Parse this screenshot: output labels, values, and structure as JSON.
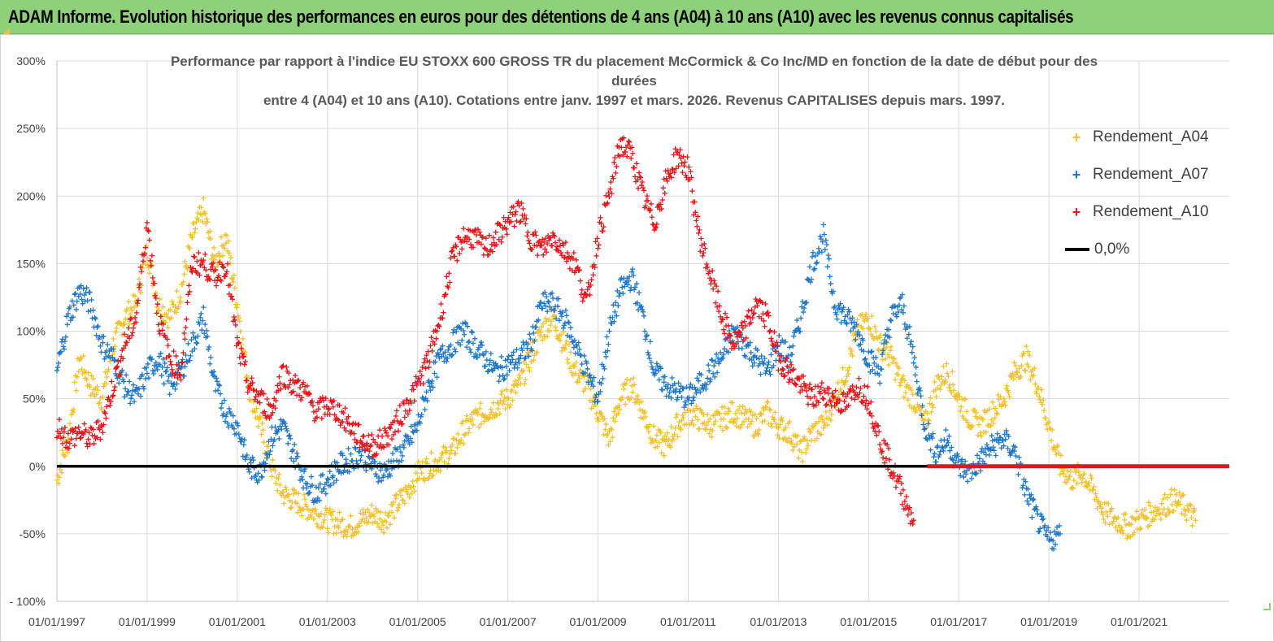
{
  "banner": {
    "title": "ADAM Informe. Evolution historique des performances en euros pour des détentions de 4 ans (A04) à 10 ans (A10) avec les revenus connus capitalisés",
    "color": "#8fd17a"
  },
  "chart_data": {
    "type": "scatter",
    "title_lines": [
      "Performance par rapport à l'indice EU STOXX 600 GROSS TR  du placement McCormick & Co Inc/MD en fonction de la date de début pour des",
      "durées",
      "entre 4 (A04) et 10 ans (A10). Cotations entre janv. 1997 et mars. 2026. Revenus CAPITALISES depuis mars. 1997."
    ],
    "xlabel": "",
    "ylabel": "",
    "xlim": [
      1997.0,
      2023.0
    ],
    "ylim": [
      -100,
      300
    ],
    "x_ticks": [
      1997,
      1999,
      2001,
      2003,
      2005,
      2007,
      2009,
      2011,
      2013,
      2015,
      2017,
      2019,
      2021
    ],
    "x_tick_labels": [
      "01/01/1997",
      "01/01/1999",
      "01/01/2001",
      "01/01/2003",
      "01/01/2005",
      "01/01/2007",
      "01/01/2009",
      "01/01/2011",
      "01/01/2013",
      "01/01/2015",
      "01/01/2017",
      "01/01/2019",
      "01/01/2021"
    ],
    "y_ticks": [
      -100,
      -50,
      0,
      50,
      100,
      150,
      200,
      250,
      300
    ],
    "y_tick_labels": [
      "- 100%",
      "-50%",
      "0%",
      "50%",
      "100%",
      "150%",
      "200%",
      "250%",
      "300%"
    ],
    "grid": true,
    "legend_position": "top-right",
    "series": [
      {
        "name": "Rendement_A04",
        "color": "#f2c12e",
        "marker": "+",
        "x": [
          1997.0,
          1997.25,
          1997.5,
          1997.75,
          1998.0,
          1998.25,
          1998.5,
          1998.75,
          1999.0,
          1999.25,
          1999.5,
          1999.75,
          2000.0,
          2000.25,
          2000.5,
          2000.75,
          2001.0,
          2001.25,
          2001.5,
          2001.75,
          2002.0,
          2002.25,
          2002.5,
          2002.75,
          2003.0,
          2003.25,
          2003.5,
          2003.75,
          2004.0,
          2004.25,
          2004.5,
          2004.75,
          2005.0,
          2005.25,
          2005.5,
          2005.75,
          2006.0,
          2006.25,
          2006.5,
          2006.75,
          2007.0,
          2007.25,
          2007.5,
          2007.75,
          2008.0,
          2008.25,
          2008.5,
          2008.75,
          2009.0,
          2009.25,
          2009.5,
          2009.75,
          2010.0,
          2010.25,
          2010.5,
          2010.75,
          2011.0,
          2011.25,
          2011.5,
          2011.75,
          2012.0,
          2012.25,
          2012.5,
          2012.75,
          2013.0,
          2013.25,
          2013.5,
          2013.75,
          2014.0,
          2014.25,
          2014.5,
          2014.75,
          2015.0,
          2015.25,
          2015.5,
          2015.75,
          2016.0,
          2016.25,
          2016.5,
          2016.75,
          2017.0,
          2017.25,
          2017.5,
          2017.75,
          2018.0,
          2018.25,
          2018.5,
          2018.75,
          2019.0,
          2019.25,
          2019.5,
          2019.75,
          2020.0,
          2020.25,
          2020.5,
          2020.75,
          2021.0,
          2021.25,
          2021.5,
          2021.75,
          2022.0,
          2022.25
        ],
        "y": [
          -10,
          20,
          80,
          60,
          50,
          90,
          110,
          120,
          160,
          120,
          110,
          130,
          170,
          190,
          150,
          170,
          120,
          60,
          30,
          0,
          -20,
          -25,
          -30,
          -35,
          -40,
          -42,
          -45,
          -40,
          -35,
          -40,
          -30,
          -20,
          -5,
          0,
          5,
          10,
          25,
          35,
          40,
          45,
          50,
          60,
          80,
          100,
          110,
          90,
          70,
          60,
          40,
          20,
          50,
          60,
          40,
          20,
          15,
          30,
          40,
          35,
          30,
          35,
          40,
          35,
          30,
          40,
          30,
          25,
          10,
          25,
          30,
          50,
          70,
          100,
          110,
          90,
          80,
          60,
          50,
          30,
          60,
          70,
          50,
          35,
          30,
          40,
          50,
          70,
          80,
          60,
          30,
          0,
          -10,
          -5,
          -20,
          -35,
          -40,
          -45,
          -40,
          -35,
          -30,
          -25,
          -30,
          -40
        ]
      },
      {
        "name": "Rendement_A07",
        "color": "#1f77c8",
        "marker": "+",
        "x": [
          1997.0,
          1997.25,
          1997.5,
          1997.75,
          1998.0,
          1998.25,
          1998.5,
          1998.75,
          1999.0,
          1999.25,
          1999.5,
          1999.75,
          2000.0,
          2000.25,
          2000.5,
          2000.75,
          2001.0,
          2001.25,
          2001.5,
          2001.75,
          2002.0,
          2002.25,
          2002.5,
          2002.75,
          2003.0,
          2003.25,
          2003.5,
          2003.75,
          2004.0,
          2004.25,
          2004.5,
          2004.75,
          2005.0,
          2005.25,
          2005.5,
          2005.75,
          2006.0,
          2006.25,
          2006.5,
          2006.75,
          2007.0,
          2007.25,
          2007.5,
          2007.75,
          2008.0,
          2008.25,
          2008.5,
          2008.75,
          2009.0,
          2009.25,
          2009.5,
          2009.75,
          2010.0,
          2010.25,
          2010.5,
          2010.75,
          2011.0,
          2011.25,
          2011.5,
          2011.75,
          2012.0,
          2012.25,
          2012.5,
          2012.75,
          2013.0,
          2013.25,
          2013.5,
          2013.75,
          2014.0,
          2014.25,
          2014.5,
          2014.75,
          2015.0,
          2015.25,
          2015.5,
          2015.75,
          2016.0,
          2016.25,
          2016.5,
          2016.75,
          2017.0,
          2017.25,
          2017.5,
          2017.75,
          2018.0,
          2018.25,
          2018.5,
          2018.75,
          2019.0,
          2019.25
        ],
        "y": [
          70,
          110,
          130,
          120,
          90,
          80,
          60,
          50,
          70,
          80,
          60,
          70,
          90,
          110,
          60,
          40,
          30,
          0,
          -5,
          20,
          30,
          10,
          -10,
          -20,
          -10,
          0,
          5,
          10,
          0,
          -5,
          5,
          15,
          30,
          60,
          80,
          90,
          100,
          90,
          80,
          70,
          75,
          80,
          90,
          120,
          120,
          110,
          90,
          70,
          50,
          100,
          130,
          140,
          110,
          70,
          60,
          55,
          50,
          60,
          70,
          80,
          100,
          90,
          80,
          70,
          90,
          80,
          110,
          150,
          170,
          120,
          110,
          100,
          80,
          70,
          110,
          120,
          80,
          30,
          10,
          20,
          0,
          -5,
          5,
          15,
          20,
          10,
          -20,
          -40,
          -55,
          -50
        ]
      },
      {
        "name": "Rendement_A10",
        "color": "#e8141a",
        "marker": "+",
        "x": [
          1997.0,
          1997.25,
          1997.5,
          1997.75,
          1998.0,
          1998.25,
          1998.5,
          1998.75,
          1999.0,
          1999.25,
          1999.5,
          1999.75,
          2000.0,
          2000.25,
          2000.5,
          2000.75,
          2001.0,
          2001.25,
          2001.5,
          2001.75,
          2002.0,
          2002.25,
          2002.5,
          2002.75,
          2003.0,
          2003.25,
          2003.5,
          2003.75,
          2004.0,
          2004.25,
          2004.5,
          2004.75,
          2005.0,
          2005.25,
          2005.5,
          2005.75,
          2006.0,
          2006.25,
          2006.5,
          2006.75,
          2007.0,
          2007.25,
          2007.5,
          2007.75,
          2008.0,
          2008.25,
          2008.5,
          2008.75,
          2009.0,
          2009.25,
          2009.5,
          2009.75,
          2010.0,
          2010.25,
          2010.5,
          2010.75,
          2011.0,
          2011.25,
          2011.5,
          2011.75,
          2012.0,
          2012.25,
          2012.5,
          2012.75,
          2013.0,
          2013.25,
          2013.5,
          2013.75,
          2014.0,
          2014.25,
          2014.5,
          2014.75,
          2015.0,
          2015.25,
          2015.5,
          2015.75,
          2016.0
        ],
        "y": [
          30,
          20,
          25,
          20,
          30,
          60,
          90,
          110,
          180,
          110,
          80,
          70,
          150,
          150,
          140,
          150,
          90,
          60,
          50,
          40,
          70,
          60,
          55,
          40,
          45,
          40,
          30,
          20,
          15,
          20,
          30,
          45,
          60,
          80,
          110,
          150,
          170,
          170,
          160,
          170,
          180,
          190,
          170,
          160,
          170,
          160,
          150,
          120,
          170,
          200,
          240,
          230,
          200,
          180,
          210,
          230,
          220,
          170,
          140,
          110,
          90,
          100,
          120,
          110,
          80,
          70,
          60,
          50,
          55,
          50,
          45,
          60,
          50,
          20,
          0,
          -20,
          -40
        ]
      },
      {
        "name": "0,0%",
        "color": "#000000",
        "type": "line",
        "x": [
          1997.0,
          2023.0
        ],
        "y": [
          0,
          0
        ]
      }
    ],
    "flat_segment_A10": {
      "x_start": 2016.3,
      "x_end": 2023.0,
      "y": 0,
      "color": "#e8141a"
    }
  }
}
